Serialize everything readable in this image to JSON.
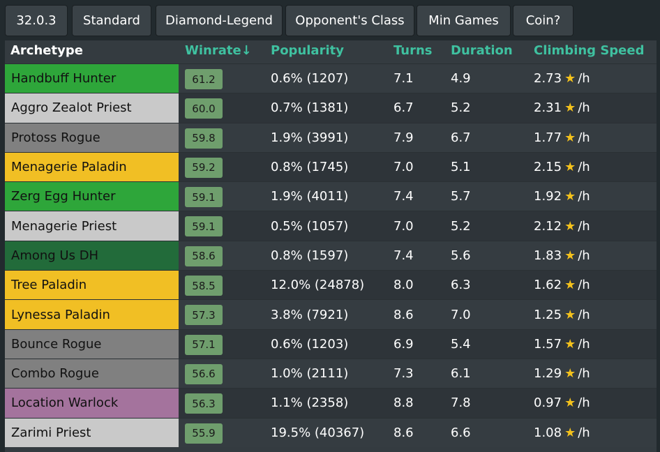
{
  "filters": [
    {
      "name": "filter-patch",
      "label": "32.0.3"
    },
    {
      "name": "filter-format",
      "label": "Standard"
    },
    {
      "name": "filter-rank",
      "label": "Diamond-Legend"
    },
    {
      "name": "filter-opponent-class",
      "label": "Opponent's Class"
    },
    {
      "name": "filter-min-games",
      "label": "Min Games"
    },
    {
      "name": "filter-coin",
      "label": "Coin?"
    }
  ],
  "table": {
    "headers": {
      "archetype": "Archetype",
      "winrate": "Winrate↓",
      "popularity": "Popularity",
      "turns": "Turns",
      "duration": "Duration",
      "climbing": "Climbing Speed"
    },
    "rate_suffix": "/h",
    "star_icon": "star-icon",
    "rows": [
      {
        "archetype": "Handbuff Hunter",
        "color": "#2ea63a",
        "winrate": "61.2",
        "popularity": "0.6% (1207)",
        "turns": "7.1",
        "duration": "4.9",
        "climbing": "2.73"
      },
      {
        "archetype": "Aggro Zealot Priest",
        "color": "#c9c9c9",
        "winrate": "60.0",
        "popularity": "0.7% (1381)",
        "turns": "6.7",
        "duration": "5.2",
        "climbing": "2.31"
      },
      {
        "archetype": "Protoss Rogue",
        "color": "#808080",
        "winrate": "59.8",
        "popularity": "1.9% (3991)",
        "turns": "7.9",
        "duration": "6.7",
        "climbing": "1.77"
      },
      {
        "archetype": "Menagerie Paladin",
        "color": "#f1bf24",
        "winrate": "59.2",
        "popularity": "0.8% (1745)",
        "turns": "7.0",
        "duration": "5.1",
        "climbing": "2.15"
      },
      {
        "archetype": "Zerg Egg Hunter",
        "color": "#2ea63a",
        "winrate": "59.1",
        "popularity": "1.9% (4011)",
        "turns": "7.4",
        "duration": "5.7",
        "climbing": "1.92"
      },
      {
        "archetype": "Menagerie Priest",
        "color": "#c9c9c9",
        "winrate": "59.1",
        "popularity": "0.5% (1057)",
        "turns": "7.0",
        "duration": "5.2",
        "climbing": "2.12"
      },
      {
        "archetype": "Among Us DH",
        "color": "#226b3a",
        "winrate": "58.6",
        "popularity": "0.8% (1597)",
        "turns": "7.4",
        "duration": "5.6",
        "climbing": "1.83"
      },
      {
        "archetype": "Tree Paladin",
        "color": "#f1bf24",
        "winrate": "58.5",
        "popularity": "12.0% (24878)",
        "turns": "8.0",
        "duration": "6.3",
        "climbing": "1.62"
      },
      {
        "archetype": "Lynessa Paladin",
        "color": "#f1bf24",
        "winrate": "57.3",
        "popularity": "3.8% (7921)",
        "turns": "8.6",
        "duration": "7.0",
        "climbing": "1.25"
      },
      {
        "archetype": "Bounce Rogue",
        "color": "#808080",
        "winrate": "57.1",
        "popularity": "0.6% (1203)",
        "turns": "6.9",
        "duration": "5.4",
        "climbing": "1.57"
      },
      {
        "archetype": "Combo Rogue",
        "color": "#808080",
        "winrate": "56.6",
        "popularity": "1.0% (2111)",
        "turns": "7.3",
        "duration": "6.1",
        "climbing": "1.29"
      },
      {
        "archetype": "Location Warlock",
        "color": "#a4739d",
        "winrate": "56.3",
        "popularity": "1.1% (2358)",
        "turns": "8.8",
        "duration": "7.8",
        "climbing": "0.97"
      },
      {
        "archetype": "Zarimi Priest",
        "color": "#c9c9c9",
        "winrate": "55.9",
        "popularity": "19.5% (40367)",
        "turns": "8.6",
        "duration": "6.6",
        "climbing": "1.08"
      }
    ]
  }
}
